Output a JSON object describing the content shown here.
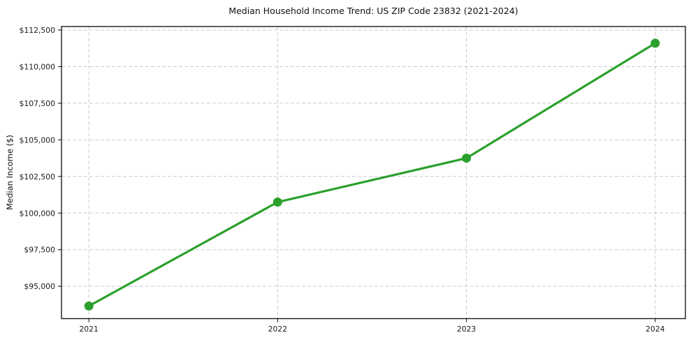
{
  "figure": {
    "background_color": "#ffffff",
    "text_color": "#111111",
    "grid_color": "#cccccc",
    "spine_color": "#1a1a1a"
  },
  "chart_data": {
    "type": "line",
    "title": "Median Household Income Trend: US ZIP Code 23832 (2021-2024)",
    "xlabel": "",
    "ylabel": "Median Income ($)",
    "categories": [
      "2021",
      "2022",
      "2023",
      "2024"
    ],
    "x": [
      2021,
      2022,
      2023,
      2024
    ],
    "series": [
      {
        "name": "Median Household Income",
        "values": [
          93650,
          100750,
          103750,
          111600
        ],
        "color": "#2ca02c",
        "marker": "circle",
        "marker_radius": 6.5,
        "line_width": 3.2
      }
    ],
    "yticks": {
      "values": [
        95000,
        97500,
        100000,
        102500,
        105000,
        107500,
        110000,
        112500
      ],
      "labels": [
        "$95,000",
        "$97,500",
        "$100,000",
        "$102,500",
        "$105,000",
        "$107,500",
        "$110,000",
        "$112,500"
      ]
    },
    "xlim": [
      2020.855,
      2024.16
    ],
    "ylim": [
      92790,
      112740
    ],
    "grid": true,
    "grid_style": "dashed",
    "legend_position": "none"
  }
}
